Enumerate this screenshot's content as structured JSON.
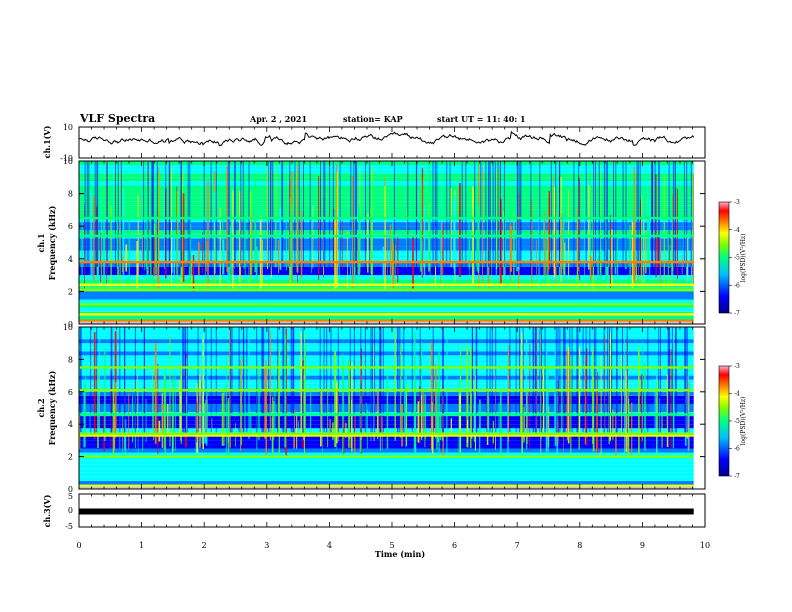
{
  "header": {
    "title": "VLF Spectra",
    "date": "Apr. 2  , 2021",
    "station": "station= KAP",
    "start": "start  UT  =   11: 40: 1"
  },
  "colors": {
    "trace": "#000000",
    "colormap": [
      "#00008b",
      "#0000ff",
      "#0080ff",
      "#00ffff",
      "#00ff80",
      "#80ff00",
      "#ffff00",
      "#ff8000",
      "#ff0000",
      "#ff80a0",
      "#ffffff"
    ],
    "ch3_bar": "#000000"
  },
  "chart_data": [
    {
      "type": "line",
      "name": "ch1-waveform",
      "ylabel": "ch.1(V)",
      "ylim": [
        -10,
        10
      ],
      "yticks": [
        "10",
        "-10"
      ],
      "x_range_min": [
        0,
        9.82
      ],
      "approx_mean_v": 1.5,
      "approx_swing_v": [
        -3,
        9
      ]
    },
    {
      "type": "heatmap",
      "name": "ch1-spectrogram",
      "ylabel": "ch.1\nFrequency (kHz)",
      "ylim_khz": [
        0,
        10
      ],
      "yticks": [
        "0",
        "2",
        "4",
        "6",
        "8",
        "10"
      ],
      "x_range_min": [
        0,
        9.82
      ],
      "colorbar": {
        "label": "log(PSD)(V²/Hz)",
        "range": [
          -7,
          -3
        ],
        "ticks": [
          "-3",
          "-4",
          "-5",
          "-6",
          "-7"
        ]
      },
      "background_logpsd": -5.2,
      "bands_khz": [
        {
          "f": 3.8,
          "level": -3.6
        },
        {
          "f": 2.4,
          "level": -4.2
        },
        {
          "f": 2.1,
          "level": -4.6
        },
        {
          "f": 1.2,
          "level": -4.5
        },
        {
          "f": 0.6,
          "level": -4.3
        },
        {
          "f": 0.2,
          "level": -3.8
        },
        {
          "f": 6.5,
          "level": -4.8
        },
        {
          "f": 5.4,
          "level": -4.9
        }
      ],
      "quiet_bands_khz": [
        {
          "from": 3.0,
          "to": 3.5,
          "level": -6.2
        },
        {
          "from": 4.5,
          "to": 5.0,
          "level": -5.9
        },
        {
          "from": 5.6,
          "to": 6.2,
          "level": -5.8
        },
        {
          "from": 1.5,
          "to": 1.9,
          "level": -5.9
        }
      ]
    },
    {
      "type": "heatmap",
      "name": "ch2-spectrogram",
      "ylabel": "ch.2\nFrequency (kHz)",
      "ylim_khz": [
        0,
        10
      ],
      "yticks": [
        "0",
        "2",
        "4",
        "6",
        "8",
        "10"
      ],
      "x_range_min": [
        0,
        9.82
      ],
      "colorbar": {
        "label": "log(PSD)(V²/Hz)",
        "range": [
          -7,
          -3
        ],
        "ticks": [
          "-3",
          "-4",
          "-5",
          "-6",
          "-7"
        ]
      },
      "background_logpsd": -5.5,
      "bands_khz": [
        {
          "f": 6.1,
          "level": -4.4
        },
        {
          "f": 3.3,
          "level": -4.0
        },
        {
          "f": 3.4,
          "level": -4.6
        },
        {
          "f": 2.0,
          "level": -4.6
        },
        {
          "f": 0.2,
          "level": -4.2
        },
        {
          "f": 4.6,
          "level": -4.9
        },
        {
          "f": 7.5,
          "level": -4.7
        }
      ],
      "quiet_bands_khz": [
        {
          "from": 2.3,
          "to": 3.1,
          "level": -6.4
        },
        {
          "from": 3.7,
          "to": 4.3,
          "level": -6.3
        },
        {
          "from": 5.0,
          "to": 5.8,
          "level": -6.0
        }
      ]
    },
    {
      "type": "line",
      "name": "ch3-waveform",
      "ylabel": "ch.3(V)",
      "ylim": [
        -5,
        5
      ],
      "yticks": [
        "5",
        "0",
        "-5"
      ],
      "x_range_min": [
        0,
        9.82
      ],
      "constant_v": -0.3,
      "xlabel": "Time  (min)",
      "xlim": [
        0,
        10
      ],
      "xticks": [
        "0",
        "1",
        "2",
        "3",
        "4",
        "5",
        "6",
        "7",
        "8",
        "9",
        "10"
      ]
    }
  ]
}
